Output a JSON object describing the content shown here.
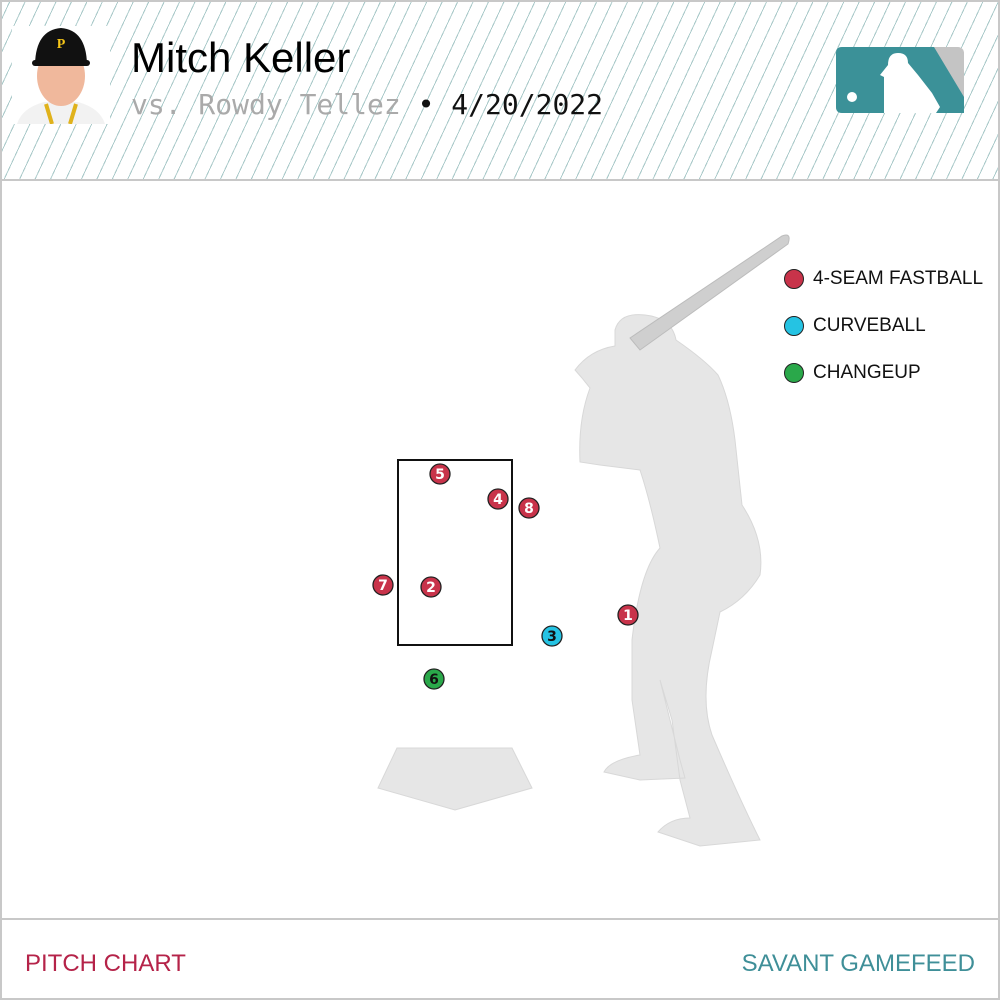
{
  "header": {
    "pitcher": "Mitch Keller",
    "batter_text": "vs. Rowdy Tellez",
    "separator": "•",
    "date": "4/20/2022"
  },
  "legend": [
    {
      "label": "4-SEAM FASTBALL",
      "color": "#c8334a"
    },
    {
      "label": "CURVEBALL",
      "color": "#25c3e3"
    },
    {
      "label": "CHANGEUP",
      "color": "#2aa84a"
    }
  ],
  "pitches": [
    {
      "number": "1",
      "type": "4-SEAM FASTBALL"
    },
    {
      "number": "2",
      "type": "4-SEAM FASTBALL"
    },
    {
      "number": "3",
      "type": "CURVEBALL"
    },
    {
      "number": "4",
      "type": "4-SEAM FASTBALL"
    },
    {
      "number": "5",
      "type": "4-SEAM FASTBALL"
    },
    {
      "number": "6",
      "type": "CHANGEUP"
    },
    {
      "number": "7",
      "type": "4-SEAM FASTBALL"
    },
    {
      "number": "8",
      "type": "4-SEAM FASTBALL"
    }
  ],
  "footer": {
    "left": "PITCH CHART",
    "right": "SAVANT GAMEFEED"
  },
  "colors": {
    "accent_left": "#b52349",
    "accent_right": "#3f8f98",
    "logo": "#3b9198"
  }
}
